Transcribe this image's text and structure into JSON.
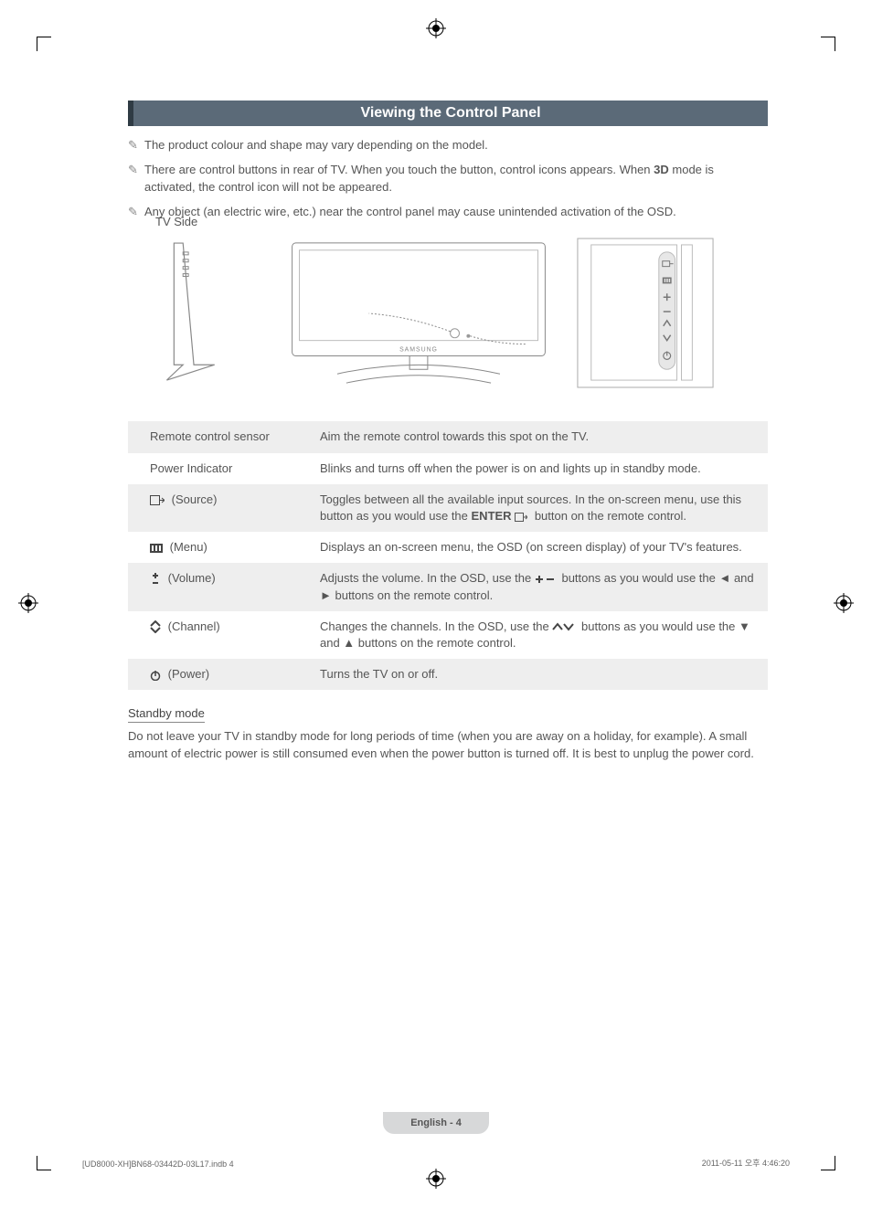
{
  "banner": {
    "title": "Viewing the Control Panel"
  },
  "notes": [
    "The product colour and shape may vary depending on the model.",
    "There are control buttons in rear of TV. When you touch the button, control icons appears. When <b>3D</b> mode is activated, the control icon will not be appeared.",
    "Any object (an electric wire, etc.) near the control panel may cause unintended activation of the OSD."
  ],
  "diagram": {
    "tv_side_label": "TV Side",
    "brand": "SAMSUNG"
  },
  "table": {
    "rows": [
      {
        "label": "Remote control sensor",
        "desc": "Aim the remote control towards this spot on the TV.",
        "icon": null
      },
      {
        "label": "Power Indicator",
        "desc": "Blinks and turns off when the power is on and lights up in standby mode.",
        "icon": null
      },
      {
        "label": "(Source)",
        "desc": "Toggles between all the available input sources. In the on-screen menu, use this button as you would use the <b>ENTER</b> <svg class='glyph' width='14' height='10' viewBox='0 0 14 10'><rect x='0.5' y='0.5' width='9' height='9' fill='none' stroke='#555'/><path d='M10 5 L13 5 M12 3 L14 5 L12 7' fill='none' stroke='#555'/></svg> button on the remote control.",
        "icon": "source"
      },
      {
        "label": "(Menu)",
        "desc": "Displays an on-screen menu, the OSD (on screen display) of your TV's features.",
        "icon": "menu"
      },
      {
        "label": "(Volume)",
        "desc": "Adjusts the volume. In the OSD, use the <svg class='glyph' width='22' height='12' viewBox='0 0 22 12'><path d='M5 2 V10 M1 6 H9' stroke='#444' stroke-width='2'/><path d='M13 6 H21' stroke='#444' stroke-width='2'/></svg> buttons as you would use the ◄ and ► buttons on the remote control.",
        "icon": "volume"
      },
      {
        "label": "(Channel)",
        "desc": "Changes the channels. In the OSD, use the <svg class='glyph' width='24' height='12' viewBox='0 0 24 12'><path d='M1 9 L6 3 L11 9' fill='none' stroke='#444' stroke-width='2'/><path d='M13 3 L18 9 L23 3' fill='none' stroke='#444' stroke-width='2'/></svg> buttons as you would use the ▼ and ▲ buttons on the remote control.",
        "icon": "channel"
      },
      {
        "label": "(Power)",
        "desc": "Turns the TV on or off.",
        "icon": "power"
      }
    ]
  },
  "standby": {
    "head": "Standby mode",
    "text": "Do not leave your TV in standby mode for long periods of time (when you are away on a holiday, for example). A small amount of electric power is still consumed even when the power button is turned off. It is best to unplug the power cord."
  },
  "footer": {
    "page": "English - 4",
    "print_left": "[UD8000-XH]BN68-03442D-03L17.indb   4",
    "print_right": "2011-05-11   오후 4:46:20"
  },
  "colors": {
    "banner_bg": "#5b6a78",
    "banner_accent": "#2f3b44",
    "row_alt": "#eeeeee",
    "text": "#555555",
    "footer_pill": "#d7d8d9"
  }
}
